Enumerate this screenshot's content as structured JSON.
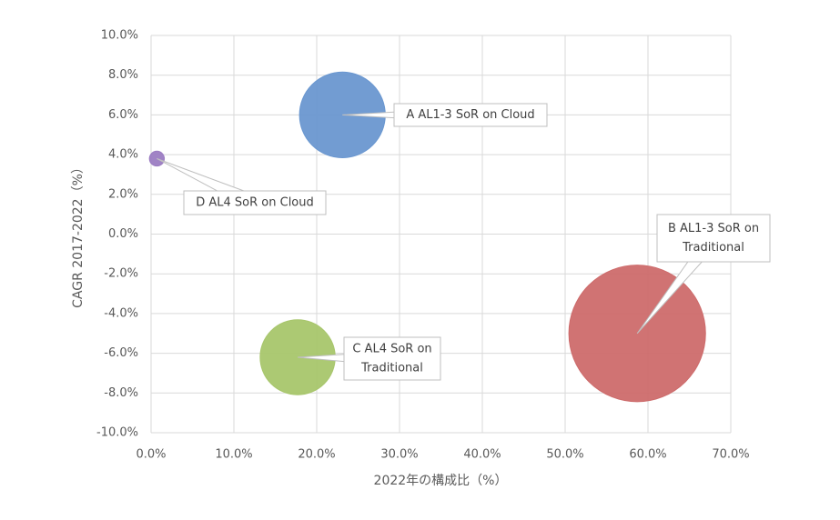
{
  "chart_data": {
    "type": "bubble",
    "x_label": "2022年の構成比（%）",
    "y_label": "CAGR 2017-2022（%）",
    "x": [
      23.1,
      58.7,
      17.7,
      0.7
    ],
    "values": [
      6.0,
      -5.0,
      -6.2,
      3.8
    ],
    "sizes": [
      23.1,
      58.7,
      17.7,
      0.7
    ],
    "colors": [
      "#6a97d0",
      "#cd6b6b",
      "#a8c66c",
      "#9b7cc2"
    ],
    "labels": [
      [
        "A AL1-3 SoR on Cloud"
      ],
      [
        "B AL1-3 SoR on",
        "Traditional"
      ],
      [
        "C AL4 SoR on",
        "Traditional"
      ],
      [
        "D AL4 SoR on Cloud"
      ]
    ],
    "xlim": [
      0,
      70
    ],
    "xticks": [
      {
        "value": 0,
        "label": "0.0%"
      },
      {
        "value": 10,
        "label": "10.0%"
      },
      {
        "value": 20,
        "label": "20.0%"
      },
      {
        "value": 30,
        "label": "30.0%"
      },
      {
        "value": 40,
        "label": "40.0%"
      },
      {
        "value": 50,
        "label": "50.0%"
      },
      {
        "value": 60,
        "label": "60.0%"
      },
      {
        "value": 70,
        "label": "70.0%"
      }
    ],
    "ylim": [
      -10,
      10
    ],
    "yticks": [
      {
        "value": -10,
        "label": "-10.0%"
      },
      {
        "value": -8,
        "label": "-8.0%"
      },
      {
        "value": -6,
        "label": "-6.0%"
      },
      {
        "value": -4,
        "label": "-4.0%"
      },
      {
        "value": -2,
        "label": "-2.0%"
      },
      {
        "value": 0,
        "label": "0.0%"
      },
      {
        "value": 2,
        "label": "2.0%"
      },
      {
        "value": 4,
        "label": "4.0%"
      },
      {
        "value": 6,
        "label": "6.0%"
      },
      {
        "value": 8,
        "label": "8.0%"
      },
      {
        "value": 10,
        "label": "10.0%"
      }
    ],
    "grid": true
  }
}
